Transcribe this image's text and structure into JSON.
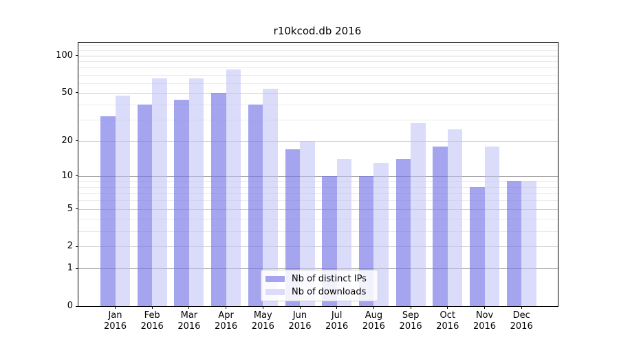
{
  "title": "r10kcod.db 2016",
  "chart_data": {
    "type": "bar",
    "title": "r10kcod.db 2016",
    "categories": [
      "Jan",
      "Feb",
      "Mar",
      "Apr",
      "May",
      "Jun",
      "Jul",
      "Aug",
      "Sep",
      "Oct",
      "Nov",
      "Dec"
    ],
    "year": "2016",
    "series": [
      {
        "name": "Nb of distinct IPs",
        "color": "#a5a5ef",
        "fill": "rgba(116,116,231,0.65)",
        "values": [
          32,
          40,
          44,
          50,
          40,
          17,
          10,
          10,
          14,
          18,
          8,
          9
        ]
      },
      {
        "name": "Nb of downloads",
        "color": "#dbdbfa",
        "fill": "rgba(189,189,246,0.55)",
        "values": [
          47,
          65,
          65,
          77,
          54,
          20,
          14,
          13,
          28,
          25,
          18,
          9
        ]
      }
    ],
    "yscale": "log1p",
    "ylim": [
      0,
      126
    ],
    "y_major_ticks": [
      0,
      1,
      2,
      5,
      10,
      20,
      50,
      100
    ],
    "y_minor_gridlines": [
      3,
      4,
      6,
      7,
      8,
      9,
      30,
      40,
      60,
      70,
      80,
      90,
      110,
      120
    ],
    "emphasized_gridlines": [
      1,
      10
    ],
    "grid": true,
    "legend_position": "lower center"
  },
  "legend": {
    "items": [
      "Nb of distinct IPs",
      "Nb of downloads"
    ]
  },
  "colors": {
    "background": "#ffffff",
    "spine": "#000000",
    "grid_major": "#d0d0d0",
    "grid_decade": "#a6a6a6",
    "grid_minor": "#ebebeb",
    "text": "#000000"
  }
}
